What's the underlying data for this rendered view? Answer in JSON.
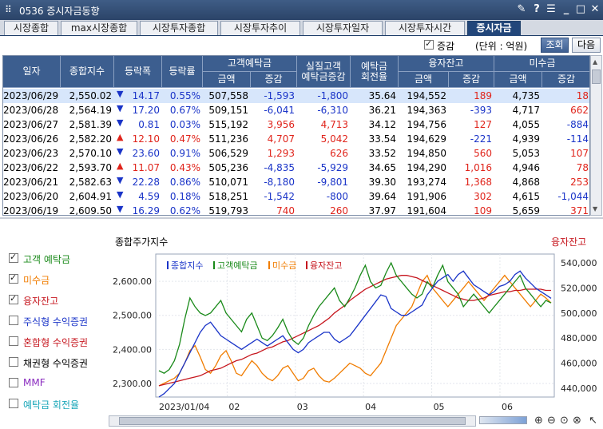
{
  "window": {
    "title": "0536 증시자금동향",
    "app_icon": "⠿",
    "controls": [
      "✎",
      "?",
      "☰",
      "_",
      "□",
      "✕"
    ]
  },
  "tabs": [
    {
      "label": "시장종합"
    },
    {
      "label": "max시장종합"
    },
    {
      "label": "시장투자종합"
    },
    {
      "label": "시장투자추이"
    },
    {
      "label": "시장투자일자"
    },
    {
      "label": "시장투자시간"
    },
    {
      "label": "증시자금"
    }
  ],
  "options": {
    "delta_label": "증감",
    "delta_checked": true,
    "unit_label": "(단위 : 억원)",
    "search_button": "조회",
    "next_button": "다음"
  },
  "table": {
    "headers": {
      "date": "일자",
      "index": "종합지수",
      "change": "등락폭",
      "rate": "등락률",
      "deposit": "고객예탁금",
      "deposit_amt": "금액",
      "deposit_chg": "증감",
      "real_deposit": "실질고객\n예탁금증감",
      "turnover": "예탁금\n회전율",
      "credit": "융자잔고",
      "credit_amt": "금액",
      "credit_chg": "증감",
      "unpaid": "미수금",
      "unpaid_amt": "금액",
      "unpaid_chg": "증감"
    },
    "rows": [
      {
        "date": "2023/06/29",
        "index": "2,550.02",
        "dir": "down",
        "change": "14.17",
        "rate": "0.55%",
        "dep": "507,558",
        "dep_chg": "-1,593",
        "real": "-1,800",
        "turn": "35.64",
        "cr": "194,552",
        "cr_chg": "189",
        "un": "4,735",
        "un_chg": "18"
      },
      {
        "date": "2023/06/28",
        "index": "2,564.19",
        "dir": "down",
        "change": "17.20",
        "rate": "0.67%",
        "dep": "509,151",
        "dep_chg": "-6,041",
        "real": "-6,310",
        "turn": "36.21",
        "cr": "194,363",
        "cr_chg": "-393",
        "un": "4,717",
        "un_chg": "662"
      },
      {
        "date": "2023/06/27",
        "index": "2,581.39",
        "dir": "down",
        "change": "0.81",
        "rate": "0.03%",
        "dep": "515,192",
        "dep_chg": "3,956",
        "real": "4,713",
        "turn": "34.12",
        "cr": "194,756",
        "cr_chg": "127",
        "un": "4,055",
        "un_chg": "-884"
      },
      {
        "date": "2023/06/26",
        "index": "2,582.20",
        "dir": "up",
        "change": "12.10",
        "rate": "0.47%",
        "dep": "511,236",
        "dep_chg": "4,707",
        "real": "5,042",
        "turn": "33.54",
        "cr": "194,629",
        "cr_chg": "-221",
        "un": "4,939",
        "un_chg": "-114"
      },
      {
        "date": "2023/06/23",
        "index": "2,570.10",
        "dir": "down",
        "change": "23.60",
        "rate": "0.91%",
        "dep": "506,529",
        "dep_chg": "1,293",
        "real": "626",
        "turn": "33.52",
        "cr": "194,850",
        "cr_chg": "560",
        "un": "5,053",
        "un_chg": "107"
      },
      {
        "date": "2023/06/22",
        "index": "2,593.70",
        "dir": "up",
        "change": "11.07",
        "rate": "0.43%",
        "dep": "505,236",
        "dep_chg": "-4,835",
        "real": "-5,929",
        "turn": "34.65",
        "cr": "194,290",
        "cr_chg": "1,016",
        "un": "4,946",
        "un_chg": "78"
      },
      {
        "date": "2023/06/21",
        "index": "2,582.63",
        "dir": "down",
        "change": "22.28",
        "rate": "0.86%",
        "dep": "510,071",
        "dep_chg": "-8,180",
        "real": "-9,801",
        "turn": "39.30",
        "cr": "193,274",
        "cr_chg": "1,368",
        "un": "4,868",
        "un_chg": "253"
      },
      {
        "date": "2023/06/20",
        "index": "2,604.91",
        "dir": "down",
        "change": "4.59",
        "rate": "0.18%",
        "dep": "518,251",
        "dep_chg": "-1,542",
        "real": "-800",
        "turn": "39.64",
        "cr": "191,906",
        "cr_chg": "302",
        "un": "4,615",
        "un_chg": "-1,044"
      },
      {
        "date": "2023/06/19",
        "index": "2,609.50",
        "dir": "down",
        "change": "16.29",
        "rate": "0.62%",
        "dep": "519,793",
        "dep_chg": "740",
        "real": "260",
        "turn": "37.97",
        "cr": "191,604",
        "cr_chg": "109",
        "un": "5,659",
        "un_chg": "371"
      }
    ]
  },
  "legend_panel": [
    {
      "label": "고객 예탁금",
      "checked": true,
      "color": "#1a8a1a"
    },
    {
      "label": "미수금",
      "checked": true,
      "color": "#f07c00"
    },
    {
      "label": "융자잔고",
      "checked": true,
      "color": "#c6161e"
    },
    {
      "label": "주식형 수익증권",
      "checked": false,
      "color": "#1a34c8"
    },
    {
      "label": "혼합형 수익증권",
      "checked": false,
      "color": "#c6161e"
    },
    {
      "label": "채권형 수익증권",
      "checked": false,
      "color": "#000000"
    },
    {
      "label": "MMF",
      "checked": false,
      "color": "#8a2bbf"
    },
    {
      "label": "예탁금 회전율",
      "checked": false,
      "color": "#18a6b8"
    }
  ],
  "colors": {
    "up": "#e0241b",
    "down": "#1a34c8",
    "index": "#1a34c8",
    "deposit": "#1a8a1a",
    "unpaid": "#f07c00",
    "credit": "#c6161e"
  },
  "chart_data": {
    "type": "line",
    "title": "종합주가지수",
    "right_title": "융자잔고",
    "legend": [
      "종합지수",
      "고객예탁금",
      "미수금",
      "융자잔고"
    ],
    "x_start_label": "2023/01/04",
    "x_ticks": [
      "02",
      "03",
      "04",
      "05",
      "06"
    ],
    "left_ticks": [
      "2,300.00",
      "2,400.00",
      "2,500.00",
      "2,600.00"
    ],
    "right_ticks": [
      "440,000",
      "460,000",
      "480,000",
      "500,000",
      "520,000",
      "540,000"
    ],
    "left_ylim": [
      2260,
      2680
    ],
    "right_ylim": [
      433000,
      547000
    ],
    "series": [
      {
        "name": "종합지수",
        "key": "index",
        "values": [
          2260,
          2270,
          2285,
          2300,
          2330,
          2360,
          2390,
          2420,
          2450,
          2470,
          2480,
          2460,
          2440,
          2430,
          2420,
          2410,
          2400,
          2410,
          2420,
          2430,
          2420,
          2410,
          2420,
          2430,
          2440,
          2420,
          2400,
          2390,
          2400,
          2420,
          2430,
          2440,
          2450,
          2450,
          2430,
          2420,
          2430,
          2440,
          2460,
          2480,
          2500,
          2520,
          2540,
          2560,
          2555,
          2520,
          2510,
          2500,
          2500,
          2510,
          2520,
          2530,
          2560,
          2580,
          2600,
          2610,
          2620,
          2600,
          2620,
          2630,
          2610,
          2590,
          2580,
          2570,
          2560,
          2570,
          2585,
          2590,
          2600,
          2620,
          2630,
          2610,
          2595,
          2580,
          2570,
          2560,
          2550
        ]
      },
      {
        "name": "고객예탁금",
        "key": "deposit",
        "values": [
          454000,
          452000,
          455000,
          462000,
          475000,
          495000,
          512000,
          505000,
          500000,
          498000,
          500000,
          505000,
          510000,
          500000,
          495000,
          490000,
          485000,
          495000,
          500000,
          490000,
          480000,
          478000,
          482000,
          488000,
          495000,
          485000,
          478000,
          475000,
          480000,
          490000,
          498000,
          505000,
          510000,
          515000,
          520000,
          510000,
          505000,
          512000,
          520000,
          530000,
          538000,
          525000,
          520000,
          522000,
          532000,
          540000,
          530000,
          525000,
          520000,
          515000,
          512000,
          515000,
          525000,
          520000,
          530000,
          538000,
          525000,
          520000,
          515000,
          505000,
          510000,
          515000,
          510000,
          505000,
          500000,
          505000,
          510000,
          515000,
          520000,
          525000,
          530000,
          520000,
          515000,
          510000,
          505000,
          510000,
          508000
        ]
      },
      {
        "name": "미수금",
        "key": "unpaid",
        "values": [
          442000,
          444000,
          446000,
          448000,
          452000,
          460000,
          470000,
          474000,
          465000,
          455000,
          452000,
          458000,
          466000,
          470000,
          462000,
          452000,
          450000,
          456000,
          462000,
          458000,
          452000,
          448000,
          446000,
          450000,
          456000,
          458000,
          452000,
          446000,
          448000,
          454000,
          456000,
          450000,
          446000,
          445000,
          448000,
          452000,
          456000,
          460000,
          458000,
          456000,
          452000,
          450000,
          455000,
          460000,
          470000,
          480000,
          490000,
          495000,
          500000,
          505000,
          515000,
          525000,
          530000,
          520000,
          515000,
          510000,
          505000,
          510000,
          515000,
          520000,
          525000,
          520000,
          515000,
          510000,
          515000,
          520000,
          525000,
          530000,
          525000,
          520000,
          515000,
          510000,
          505000,
          510000,
          515000,
          512000,
          508000
        ]
      },
      {
        "name": "융자잔고",
        "key": "credit",
        "values": [
          442000,
          443000,
          444000,
          445000,
          446000,
          447000,
          448000,
          449000,
          450000,
          452000,
          454000,
          455000,
          456000,
          458000,
          460000,
          462000,
          463000,
          465000,
          467000,
          468000,
          470000,
          472000,
          473000,
          475000,
          477000,
          478000,
          480000,
          482000,
          484000,
          486000,
          488000,
          490000,
          493000,
          496000,
          500000,
          503000,
          506000,
          510000,
          513000,
          516000,
          519000,
          521000,
          523000,
          525000,
          527000,
          528000,
          529000,
          530000,
          530000,
          529000,
          528000,
          526000,
          524000,
          522000,
          520000,
          518000,
          516000,
          514000,
          512000,
          511000,
          510000,
          510000,
          511000,
          512000,
          514000,
          515000,
          516000,
          517000,
          517000,
          518000,
          518000,
          519000,
          519000,
          519000,
          519000,
          518000,
          518000
        ]
      }
    ]
  }
}
